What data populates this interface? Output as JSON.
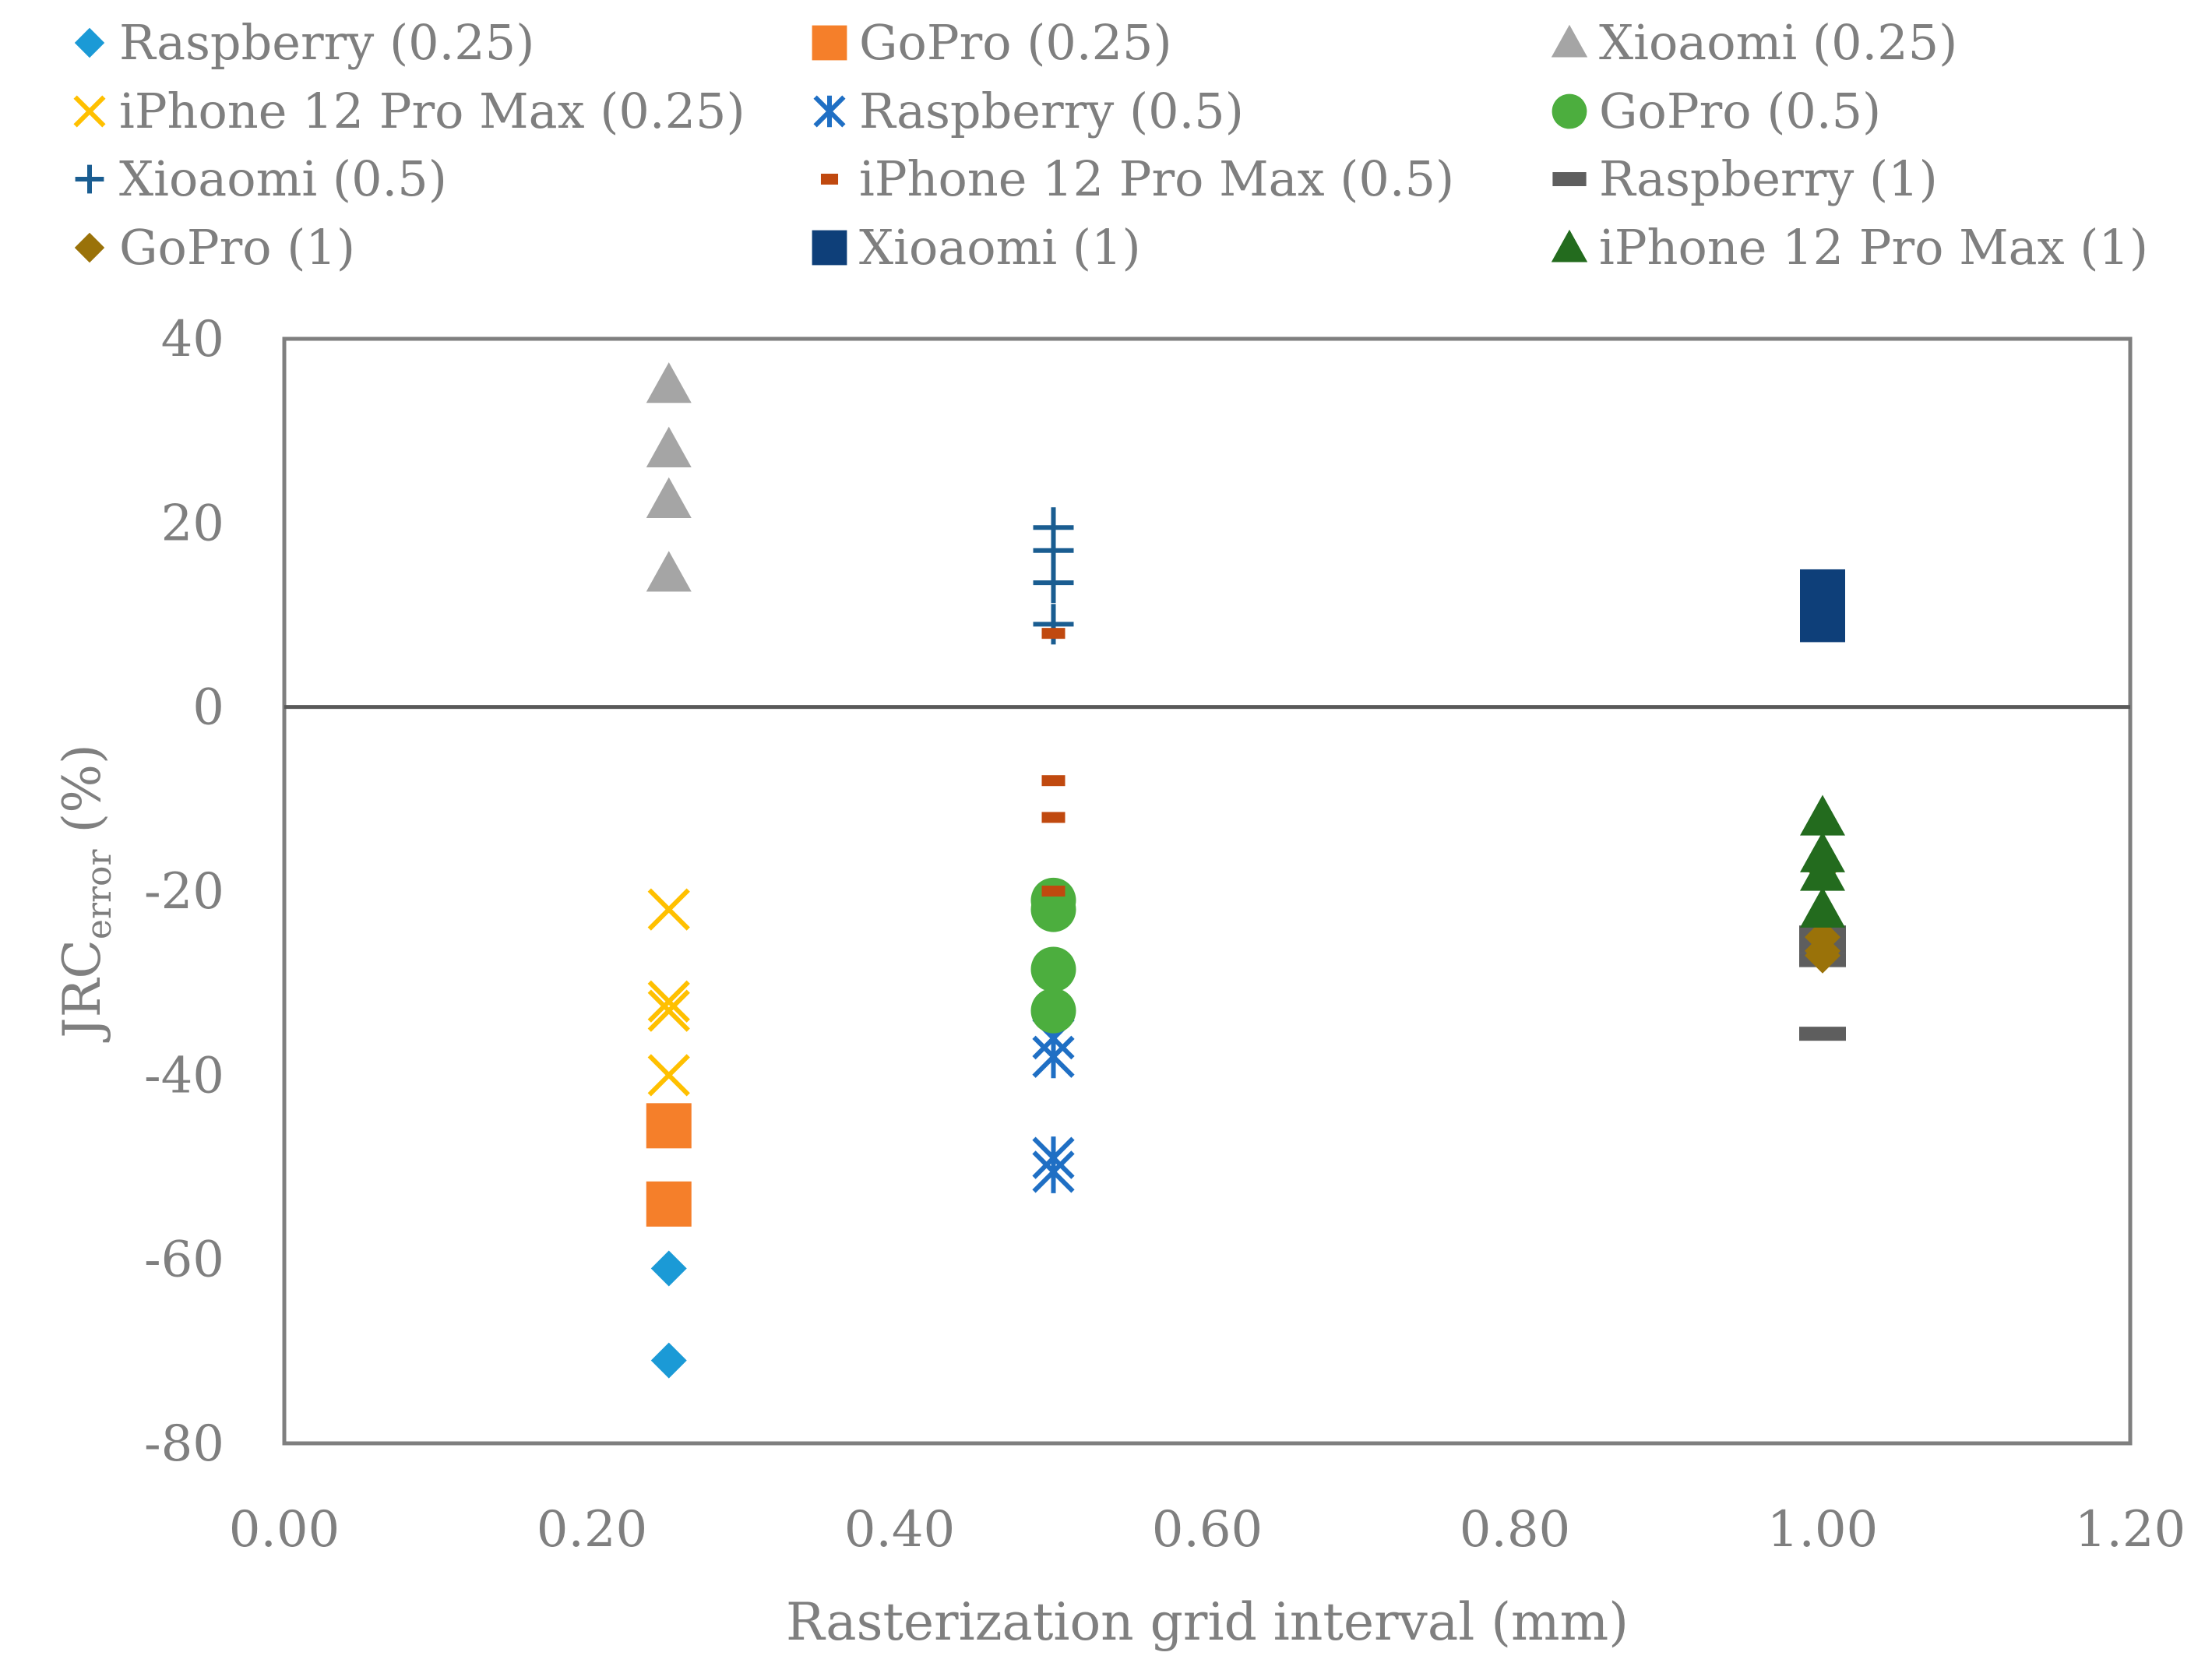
{
  "chart_data": {
    "type": "scatter",
    "title": "",
    "xlabel": "Rasterization grid interval (mm)",
    "ylabel": {
      "main": "JRC",
      "sub": "error",
      "suffix": " (%)"
    },
    "xlim": [
      0,
      1.2
    ],
    "ylim": [
      -80,
      40
    ],
    "x_ticks": [
      0,
      0.2,
      0.4,
      0.6,
      0.8,
      1.0,
      1.2
    ],
    "x_tick_labels": [
      "0.00",
      "0.20",
      "0.40",
      "0.60",
      "0.80",
      "1.00",
      "1.20"
    ],
    "y_ticks": [
      40,
      20,
      0,
      -20,
      -40,
      -60,
      -80
    ],
    "y_tick_labels": [
      "40",
      "20",
      "0",
      "-20",
      "-40",
      "-60",
      "-80"
    ],
    "grid": false,
    "zero_line": true,
    "legend_position": "top",
    "series": [
      {
        "name": "Raspberry (0.25)",
        "marker": "diamond",
        "color": "#1b9ad6",
        "x": [
          0.25,
          0.25
        ],
        "y": [
          -61,
          -71
        ]
      },
      {
        "name": "GoPro (0.25)",
        "marker": "square",
        "color": "#f57f2a",
        "x": [
          0.25,
          0.25
        ],
        "y": [
          -45.5,
          -54
        ]
      },
      {
        "name": "Xioaomi (0.25)",
        "marker": "triangle",
        "color": "#a5a5a5",
        "x": [
          0.25,
          0.25,
          0.25,
          0.25
        ],
        "y": [
          35,
          28,
          22.5,
          14.5
        ]
      },
      {
        "name": "iPhone 12 Pro Max (0.25)",
        "marker": "x",
        "color": "#ffc000",
        "x": [
          0.25,
          0.25,
          0.25,
          0.25
        ],
        "y": [
          -22,
          -32,
          -33,
          -40
        ]
      },
      {
        "name": "Raspberry (0.5)",
        "marker": "star",
        "color": "#1f6fc4",
        "x": [
          0.5,
          0.5,
          0.5,
          0.5
        ],
        "y": [
          -36,
          -38,
          -49,
          -50.5
        ]
      },
      {
        "name": "GoPro (0.5)",
        "marker": "circle",
        "color": "#4cae3e",
        "x": [
          0.5,
          0.5,
          0.5,
          0.5
        ],
        "y": [
          -21,
          -22,
          -28.5,
          -33
        ]
      },
      {
        "name": "Xioaomi (0.5)",
        "marker": "plus",
        "color": "#1a5d91",
        "x": [
          0.5,
          0.5,
          0.5,
          0.5
        ],
        "y": [
          19.5,
          17,
          13.5,
          9
        ]
      },
      {
        "name": "iPhone 12 Pro Max (0.5)",
        "marker": "dash",
        "color": "#c0490f",
        "x": [
          0.5,
          0.5,
          0.5,
          0.5
        ],
        "y": [
          8,
          -8,
          -12,
          -20
        ]
      },
      {
        "name": "Raspberry (1)",
        "marker": "dash-wide",
        "color": "#5e5e5e",
        "x": [
          1.0,
          1.0,
          1.0,
          1.0
        ],
        "y": [
          -24.5,
          -26,
          -27.5,
          -35.5
        ]
      },
      {
        "name": "GoPro (1)",
        "marker": "diamond",
        "color": "#9a7209",
        "x": [
          1.0,
          1.0,
          1.0,
          1.0
        ],
        "y": [
          -17.5,
          -25,
          -26.5,
          -27
        ]
      },
      {
        "name": "Xioaomi (1)",
        "marker": "square",
        "color": "#0e3f79",
        "x": [
          1.0,
          1.0,
          1.0,
          1.0
        ],
        "y": [
          12.5,
          11,
          10,
          9.5
        ]
      },
      {
        "name": "iPhone 12 Pro Max (1)",
        "marker": "triangle",
        "color": "#236b1e",
        "x": [
          1.0,
          1.0,
          1.0,
          1.0
        ],
        "y": [
          -12,
          -16,
          -18,
          -22
        ]
      }
    ]
  }
}
